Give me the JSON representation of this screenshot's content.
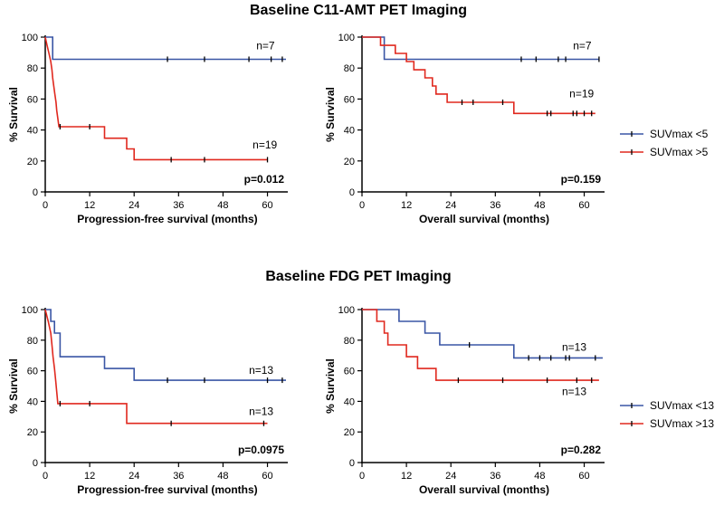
{
  "titles": {
    "top": "Baseline C11-AMT PET Imaging",
    "bottom": "Baseline FDG PET Imaging"
  },
  "colors": {
    "blue": "#3a56a5",
    "red": "#e0281e",
    "axis": "#000000"
  },
  "legends": [
    {
      "entries": [
        {
          "label": "SUVmax <5",
          "color": "#3a56a5"
        },
        {
          "label": "SUVmax >5",
          "color": "#e0281e"
        }
      ]
    },
    {
      "entries": [
        {
          "label": "SUVmax <13",
          "color": "#3a56a5"
        },
        {
          "label": "SUVmax >13",
          "color": "#e0281e"
        }
      ]
    }
  ],
  "chart_data": [
    {
      "type": "line",
      "subtype": "kaplan-meier",
      "title": "Baseline C11-AMT PET Imaging",
      "xlabel": "Progression-free survival (months)",
      "ylabel": "% Survival",
      "xlim": [
        0,
        65
      ],
      "ylim": [
        0,
        100
      ],
      "xticks": [
        0,
        12,
        24,
        36,
        48,
        60
      ],
      "yticks": [
        0,
        20,
        40,
        60,
        80,
        100
      ],
      "p_value": "p=0.012",
      "series": [
        {
          "name": "SUVmax <5",
          "color": "#3a56a5",
          "n_label": "n=7",
          "n_label_at": [
            57,
            92
          ],
          "steps": [
            [
              0,
              100
            ],
            [
              2,
              100
            ],
            [
              2,
              85.7
            ],
            [
              65,
              85.7
            ]
          ],
          "censors": [
            [
              33,
              85.7
            ],
            [
              43,
              85.7
            ],
            [
              55,
              85.7
            ],
            [
              61,
              85.7
            ],
            [
              64,
              85.7
            ]
          ]
        },
        {
          "name": "SUVmax >5",
          "color": "#e0281e",
          "n_label": "n=19",
          "n_label_at": [
            56,
            28
          ],
          "steps": [
            [
              0,
              100
            ],
            [
              0.5,
              94.7
            ],
            [
              1,
              89.5
            ],
            [
              1.5,
              84.2
            ],
            [
              1.8,
              78.9
            ],
            [
              2,
              73.7
            ],
            [
              2.3,
              68.4
            ],
            [
              2.6,
              63.2
            ],
            [
              2.9,
              57.9
            ],
            [
              3.1,
              52.6
            ],
            [
              3.4,
              47.4
            ],
            [
              3.7,
              42.1
            ],
            [
              16,
              42.1
            ],
            [
              16,
              34.7
            ],
            [
              22,
              34.7
            ],
            [
              22,
              27.8
            ],
            [
              24,
              27.8
            ],
            [
              24,
              20.8
            ],
            [
              60,
              20.8
            ]
          ],
          "censors": [
            [
              4,
              42.1
            ],
            [
              12,
              42.1
            ],
            [
              34,
              20.8
            ],
            [
              43,
              20.8
            ],
            [
              60,
              20.8
            ]
          ]
        }
      ]
    },
    {
      "type": "line",
      "subtype": "kaplan-meier",
      "title": "Baseline C11-AMT PET Imaging",
      "xlabel": "Overall survival (months)",
      "ylabel": "% Survival",
      "xlim": [
        0,
        65
      ],
      "ylim": [
        0,
        100
      ],
      "xticks": [
        0,
        12,
        24,
        36,
        48,
        60
      ],
      "yticks": [
        0,
        20,
        40,
        60,
        80,
        100
      ],
      "p_value": "p=0.159",
      "series": [
        {
          "name": "SUVmax <5",
          "color": "#3a56a5",
          "n_label": "n=7",
          "n_label_at": [
            57,
            92
          ],
          "steps": [
            [
              0,
              100
            ],
            [
              6,
              100
            ],
            [
              6,
              85.7
            ],
            [
              64,
              85.7
            ]
          ],
          "censors": [
            [
              43,
              85.7
            ],
            [
              47,
              85.7
            ],
            [
              53,
              85.7
            ],
            [
              55,
              85.7
            ],
            [
              64,
              85.7
            ]
          ]
        },
        {
          "name": "SUVmax >5",
          "color": "#e0281e",
          "n_label": "n=19",
          "n_label_at": [
            56,
            61
          ],
          "steps": [
            [
              0,
              100
            ],
            [
              5,
              100
            ],
            [
              5,
              94.7
            ],
            [
              9,
              94.7
            ],
            [
              9,
              89.5
            ],
            [
              12,
              89.5
            ],
            [
              12,
              84.2
            ],
            [
              14,
              84.2
            ],
            [
              14,
              78.9
            ],
            [
              17,
              78.9
            ],
            [
              17,
              73.7
            ],
            [
              19,
              73.7
            ],
            [
              19,
              68.4
            ],
            [
              20,
              68.4
            ],
            [
              20,
              63.2
            ],
            [
              23,
              63.2
            ],
            [
              23,
              57.9
            ],
            [
              41,
              57.9
            ],
            [
              41,
              50.7
            ],
            [
              63,
              50.7
            ]
          ],
          "censors": [
            [
              27,
              57.9
            ],
            [
              30,
              57.9
            ],
            [
              38,
              57.9
            ],
            [
              50,
              50.7
            ],
            [
              51,
              50.7
            ],
            [
              57,
              50.7
            ],
            [
              58,
              50.7
            ],
            [
              60,
              50.7
            ],
            [
              62,
              50.7
            ]
          ]
        }
      ]
    },
    {
      "type": "line",
      "subtype": "kaplan-meier",
      "title": "Baseline FDG PET Imaging",
      "xlabel": "Progression-free survival (months)",
      "ylabel": "% Survival",
      "xlim": [
        0,
        65
      ],
      "ylim": [
        0,
        100
      ],
      "xticks": [
        0,
        12,
        24,
        36,
        48,
        60
      ],
      "yticks": [
        0,
        20,
        40,
        60,
        80,
        100
      ],
      "p_value": "p=0.0975",
      "series": [
        {
          "name": "SUVmax <13",
          "color": "#3a56a5",
          "n_label": "n=13",
          "n_label_at": [
            55,
            58
          ],
          "steps": [
            [
              0,
              100
            ],
            [
              1.5,
              100
            ],
            [
              1.5,
              92.3
            ],
            [
              2.5,
              92.3
            ],
            [
              2.5,
              84.6
            ],
            [
              4,
              84.6
            ],
            [
              4,
              69.2
            ],
            [
              16,
              69.2
            ],
            [
              16,
              61.5
            ],
            [
              24,
              61.5
            ],
            [
              24,
              53.8
            ],
            [
              65,
              53.8
            ]
          ],
          "censors": [
            [
              33,
              53.8
            ],
            [
              43,
              53.8
            ],
            [
              60,
              53.8
            ],
            [
              64,
              53.8
            ]
          ]
        },
        {
          "name": "SUVmax >13",
          "color": "#e0281e",
          "n_label": "n=13",
          "n_label_at": [
            55,
            31
          ],
          "steps": [
            [
              0,
              100
            ],
            [
              0.8,
              92.3
            ],
            [
              1.5,
              84.6
            ],
            [
              1.8,
              76.9
            ],
            [
              2.1,
              69.2
            ],
            [
              2.5,
              61.5
            ],
            [
              2.8,
              53.8
            ],
            [
              3.1,
              46.2
            ],
            [
              3.4,
              38.5
            ],
            [
              22,
              38.5
            ],
            [
              22,
              25.6
            ],
            [
              60,
              25.6
            ]
          ],
          "censors": [
            [
              4,
              38.5
            ],
            [
              12,
              38.5
            ],
            [
              34,
              25.6
            ],
            [
              59,
              25.6
            ]
          ]
        }
      ]
    },
    {
      "type": "line",
      "subtype": "kaplan-meier",
      "title": "Baseline FDG PET Imaging",
      "xlabel": "Overall survival (months)",
      "ylabel": "% Survival",
      "xlim": [
        0,
        65
      ],
      "ylim": [
        0,
        100
      ],
      "xticks": [
        0,
        12,
        24,
        36,
        48,
        60
      ],
      "yticks": [
        0,
        20,
        40,
        60,
        80,
        100
      ],
      "p_value": "p=0.282",
      "series": [
        {
          "name": "SUVmax <13",
          "color": "#3a56a5",
          "n_label": "n=13",
          "n_label_at": [
            54,
            73
          ],
          "steps": [
            [
              0,
              100
            ],
            [
              10,
              100
            ],
            [
              10,
              92.3
            ],
            [
              17,
              92.3
            ],
            [
              17,
              84.6
            ],
            [
              21,
              84.6
            ],
            [
              21,
              76.9
            ],
            [
              41,
              76.9
            ],
            [
              41,
              68.4
            ],
            [
              65,
              68.4
            ]
          ],
          "censors": [
            [
              29,
              76.9
            ],
            [
              45,
              68.4
            ],
            [
              48,
              68.4
            ],
            [
              51,
              68.4
            ],
            [
              55,
              68.4
            ],
            [
              56,
              68.4
            ],
            [
              63,
              68.4
            ]
          ]
        },
        {
          "name": "SUVmax >13",
          "color": "#e0281e",
          "n_label": "n=13",
          "n_label_at": [
            54,
            44
          ],
          "steps": [
            [
              0,
              100
            ],
            [
              4,
              100
            ],
            [
              4,
              92.3
            ],
            [
              6,
              92.3
            ],
            [
              6,
              84.6
            ],
            [
              7,
              84.6
            ],
            [
              7,
              76.9
            ],
            [
              12,
              76.9
            ],
            [
              12,
              69.2
            ],
            [
              15,
              69.2
            ],
            [
              15,
              61.5
            ],
            [
              20,
              61.5
            ],
            [
              20,
              53.8
            ],
            [
              64,
              53.8
            ]
          ],
          "censors": [
            [
              26,
              53.8
            ],
            [
              38,
              53.8
            ],
            [
              50,
              53.8
            ],
            [
              58,
              53.8
            ],
            [
              62,
              53.8
            ]
          ]
        }
      ]
    }
  ]
}
